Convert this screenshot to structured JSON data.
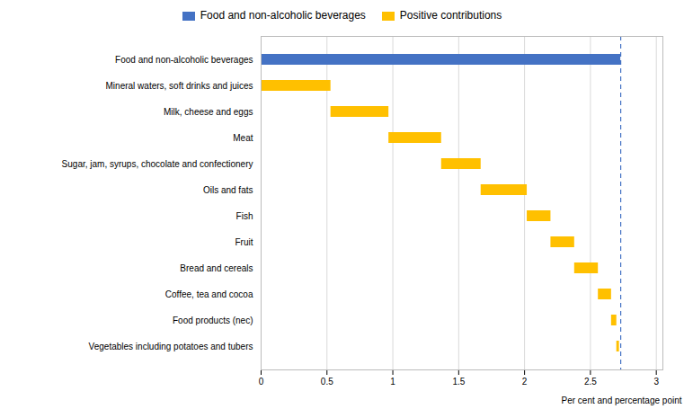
{
  "chart_data": {
    "type": "waterfall",
    "orientation": "horizontal",
    "categories": [
      "Food and non-alcoholic beverages",
      "Mineral waters, soft drinks and juices",
      "Milk, cheese and eggs",
      "Meat",
      "Sugar, jam, syrups, chocolate and confectionery",
      "Oils and fats",
      "Fish",
      "Fruit",
      "Bread and cereals",
      "Coffee, tea and cocoa",
      "Food products (nec)",
      "Vegetables including potatoes and tubers"
    ],
    "series": [
      {
        "name": "Food and non-alcoholic beverages",
        "color": "#4472C4",
        "values": [
          2.73,
          null,
          null,
          null,
          null,
          null,
          null,
          null,
          null,
          null,
          null,
          null
        ]
      },
      {
        "name": "Positive contributions",
        "color": "#FFC000",
        "values": [
          null,
          0.53,
          0.44,
          0.4,
          0.3,
          0.35,
          0.18,
          0.18,
          0.18,
          0.1,
          0.04,
          0.02
        ]
      }
    ],
    "reference_line": {
      "x": 2.73,
      "color": "#4472C4",
      "line_style": "dashed"
    },
    "xlabel": "Per cent and percentage point",
    "xlim": [
      0,
      3.05
    ],
    "xticks": [
      0,
      0.5,
      1,
      1.5,
      2,
      2.5,
      3
    ],
    "grid": true,
    "legend": "top"
  }
}
